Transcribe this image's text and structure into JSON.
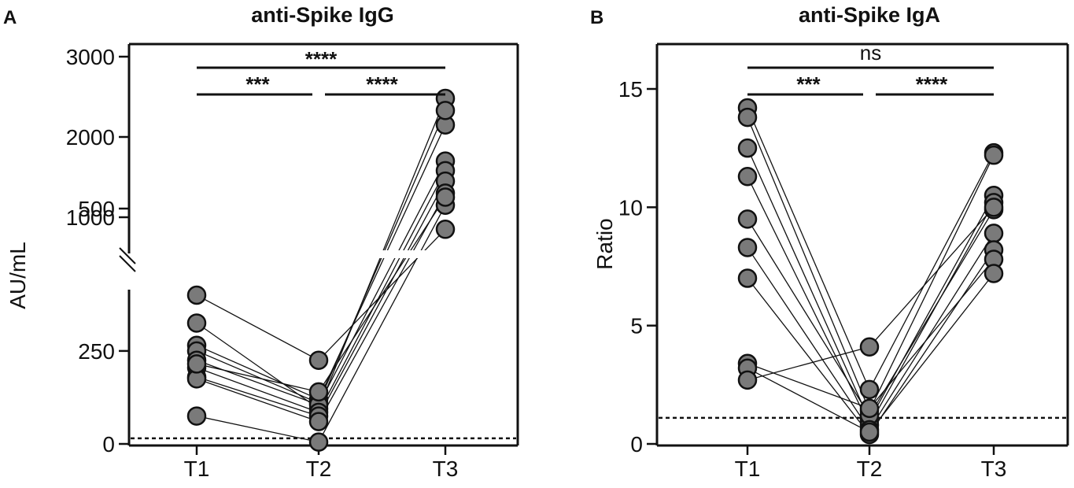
{
  "chart_data": [
    {
      "panel": "A",
      "type": "scatter",
      "title": "anti-Spike IgG",
      "xlabel": "",
      "ylabel": "AU/mL",
      "categories": [
        "T1",
        "T2",
        "T3"
      ],
      "y_axis": "broken",
      "y_segments": {
        "lower": {
          "range": [
            0,
            400
          ],
          "ticks": [
            0,
            250
          ]
        },
        "upper": {
          "range": [
            400,
            3500
          ],
          "ticks": [
            500,
            1000,
            2000,
            3000
          ]
        }
      },
      "cutoff": 15,
      "series": [
        {
          "values": [
            400,
            225,
            850
          ]
        },
        {
          "values": [
            325,
            95,
            2480
          ]
        },
        {
          "values": [
            265,
            120,
            2150
          ]
        },
        {
          "values": [
            250,
            110,
            2330
          ]
        },
        {
          "values": [
            225,
            105,
            1700
          ]
        },
        {
          "values": [
            205,
            85,
            1580
          ]
        },
        {
          "values": [
            180,
            75,
            1450
          ]
        },
        {
          "values": [
            175,
            60,
            1300
          ]
        },
        {
          "values": [
            75,
            5,
            1150
          ]
        },
        {
          "values": [
            215,
            140,
            1250
          ]
        }
      ],
      "comparisons": [
        {
          "from": "T1",
          "to": "T2",
          "label": "***"
        },
        {
          "from": "T2",
          "to": "T3",
          "label": "****"
        },
        {
          "from": "T1",
          "to": "T3",
          "label": "****"
        }
      ],
      "grid": false,
      "legend": "none"
    },
    {
      "panel": "B",
      "type": "scatter",
      "title": "anti-Spike IgA",
      "xlabel": "",
      "ylabel": "Ratio",
      "categories": [
        "T1",
        "T2",
        "T3"
      ],
      "ylim": [
        0,
        17
      ],
      "yticks": [
        0,
        5,
        10,
        15
      ],
      "cutoff": 1.1,
      "series": [
        {
          "values": [
            14.2,
            2.3,
            12.3
          ]
        },
        {
          "values": [
            13.8,
            1.4,
            12.2
          ]
        },
        {
          "values": [
            12.5,
            1.0,
            10.5
          ]
        },
        {
          "values": [
            11.3,
            0.8,
            10.2
          ]
        },
        {
          "values": [
            9.5,
            1.2,
            9.9
          ]
        },
        {
          "values": [
            8.3,
            0.6,
            8.9
          ]
        },
        {
          "values": [
            7.0,
            0.4,
            8.2
          ]
        },
        {
          "values": [
            3.4,
            1.5,
            7.8
          ]
        },
        {
          "values": [
            3.2,
            0.5,
            7.2
          ]
        },
        {
          "values": [
            2.7,
            4.1,
            10.0
          ]
        }
      ],
      "comparisons": [
        {
          "from": "T1",
          "to": "T2",
          "label": "***"
        },
        {
          "from": "T2",
          "to": "T3",
          "label": "****"
        },
        {
          "from": "T1",
          "to": "T3",
          "label": "ns"
        }
      ],
      "grid": false,
      "legend": "none"
    }
  ]
}
